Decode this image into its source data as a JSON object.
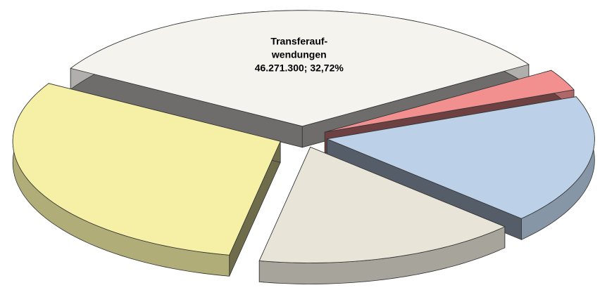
{
  "chart_data": {
    "type": "pie",
    "view": "3d-exploded",
    "categories": [
      "Transferauf-wendungen",
      null,
      null,
      null,
      null
    ],
    "values": [
      32.72,
      3,
      18,
      16,
      30.28
    ],
    "value_labels": [
      "46.271.300; 32,72%",
      null,
      null,
      null,
      null
    ],
    "colors": [
      "#f4f3ee",
      "#f29090",
      "#bcd0e8",
      "#e8e4d8",
      "#f5f0a6"
    ]
  }
}
